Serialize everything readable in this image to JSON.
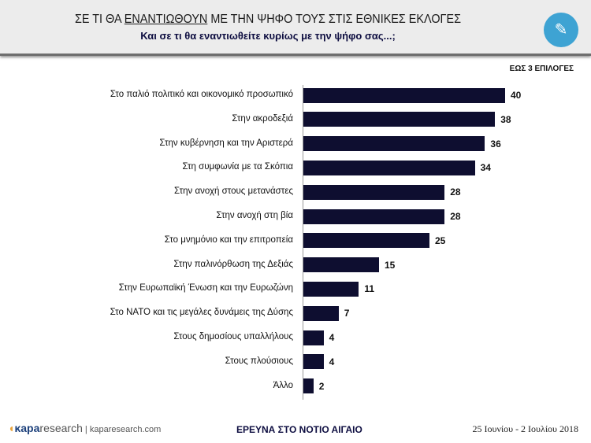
{
  "header": {
    "title_pre": "ΣΕ ΤΙ ΘΑ ",
    "title_emph": "ΕΝΑΝΤΙΩΘΟΥΝ",
    "title_post": " ΜΕ ΤΗΝ ΨΗΦΟ ΤΟΥΣ ΣΤΙΣ ΕΘΝΙΚΕΣ ΕΚΛΟΓΕΣ",
    "subtitle": "Και σε τι θα εναντιωθείτε κυρίως με την ψήφο σας...;"
  },
  "note": "ΕΩΣ 3 ΕΠΙΛΟΓΕΣ",
  "footer": {
    "brand_bold": "κapa",
    "brand_rest": "research",
    "site": " | kaparesearch.com",
    "survey": "ΕΡΕΥΝΑ ΣΤΟ ΝΟΤΙΟ ΑΙΓΑΙΟ",
    "date": "25 Ιουνίου - 2 Ιουλίου 2018"
  },
  "chart_data": {
    "type": "bar",
    "orientation": "horizontal",
    "xlim": [
      0,
      40
    ],
    "categories": [
      "Στο παλιό πολιτικό και οικονομικό προσωπικό",
      "Στην ακροδεξιά",
      "Στην κυβέρνηση και την Αριστερά",
      "Στη συμφωνία με τα Σκόπια",
      "Στην ανοχή στους μετανάστες",
      "Στην ανοχή στη βία",
      "Στο μνημόνιο και την επιτροπεία",
      "Στην παλινόρθωση της Δεξιάς",
      "Στην Ευρωπαϊκή Ένωση και την Ευρωζώνη",
      "Στο ΝΑΤΟ και τις μεγάλες δυνάμεις της Δύσης",
      "Στους δημοσίους υπαλλήλους",
      "Στους πλούσιους",
      "Άλλο"
    ],
    "values": [
      40,
      38,
      36,
      34,
      28,
      28,
      25,
      15,
      11,
      7,
      4,
      4,
      2
    ],
    "bar_color": "#0e0e30"
  }
}
